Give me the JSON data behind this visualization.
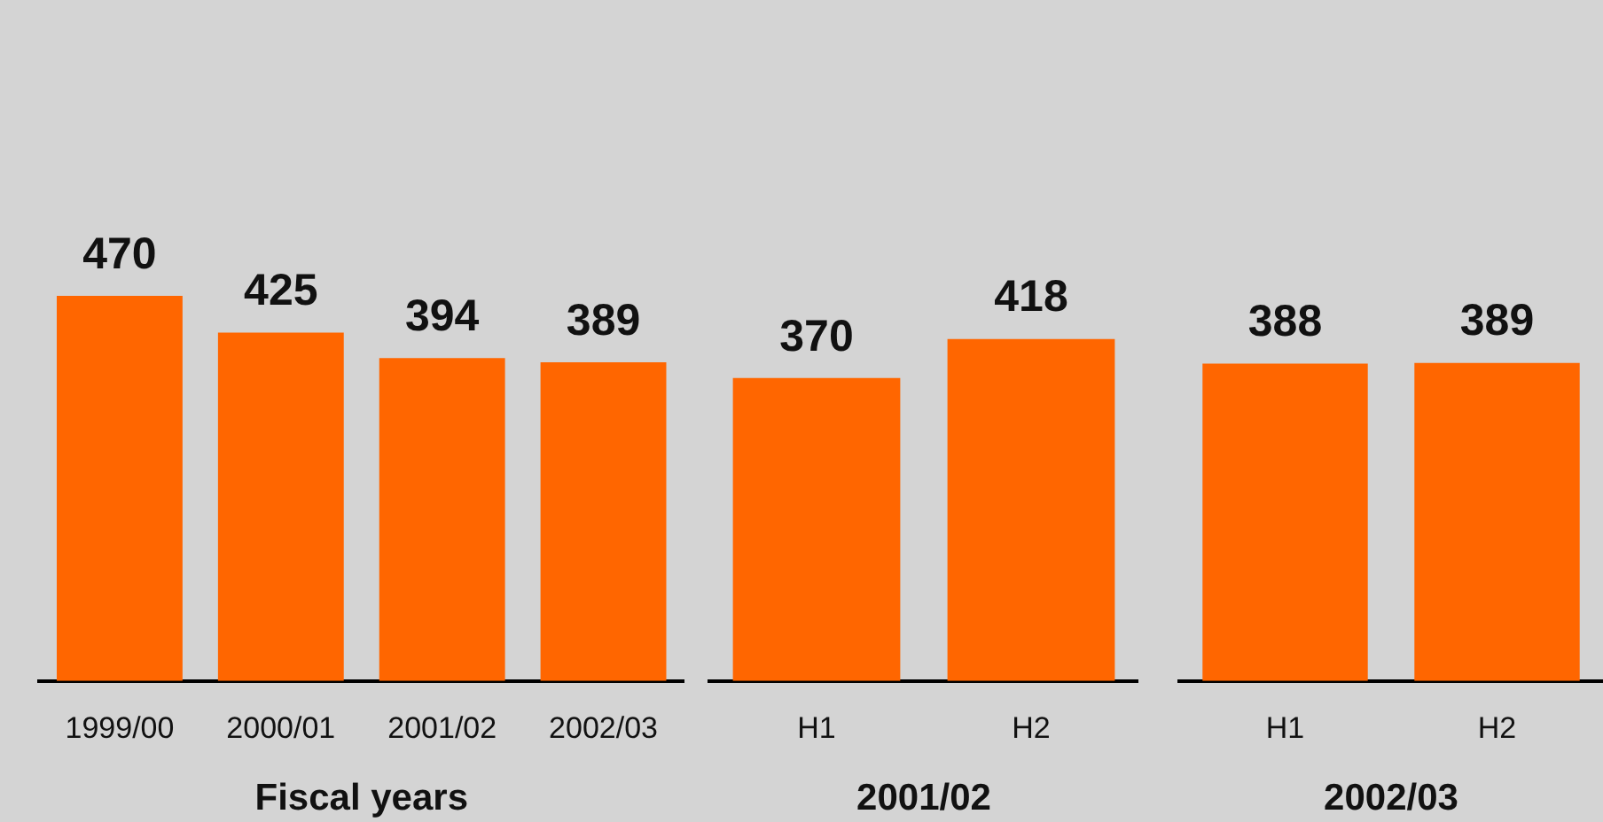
{
  "chart_data": [
    {
      "type": "bar",
      "categories": [
        "1999/00",
        "2000/01",
        "2001/02",
        "2002/03"
      ],
      "values": [
        470,
        425,
        394,
        389
      ],
      "color": "#ff6600",
      "xlabel": "Fiscal years",
      "data_labels": true,
      "tick_labels": "x"
    },
    {
      "type": "bar",
      "categories": [
        "H1",
        "H2"
      ],
      "values": [
        370,
        418
      ],
      "color": "#ff6600",
      "xlabel": "2001/02",
      "data_labels": true,
      "tick_labels": "x"
    },
    {
      "type": "bar",
      "categories": [
        "H1",
        "H2"
      ],
      "values": [
        388,
        389
      ],
      "color": "#ff6600",
      "xlabel": "2002/03",
      "data_labels": true,
      "tick_labels": "x"
    }
  ]
}
